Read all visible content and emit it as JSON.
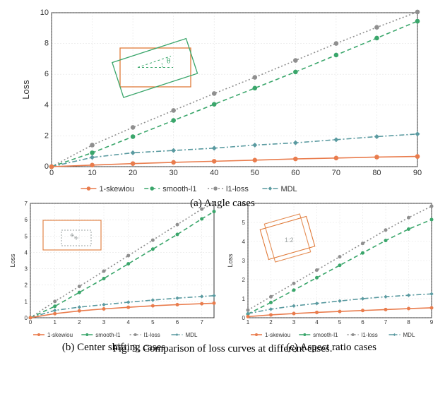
{
  "caption": "Fig. 3. Comparison of loss curves at different cases.",
  "subcaptions": {
    "a": "(a) Angle cases",
    "b": "(b) Center shifting cases",
    "c": "(c) Aspect ratio cases"
  },
  "legend_labels": {
    "skewiou": "1-skewiou",
    "smooth": "smooth-l1",
    "l1": "l1-loss",
    "mdl": "MDL"
  },
  "colors": {
    "skewiou": "#e97c4d",
    "smooth": "#3aa66b",
    "l1": "#8f8f8f",
    "mdl": "#5a9aa0",
    "axis": "#333333",
    "bg": "#ffffff",
    "inset_orange": "#e07b3a",
    "inset_green": "#3aa66b",
    "inset_gray": "#9aa0a0"
  },
  "chart_a": {
    "type": "line",
    "xlim": [
      0,
      90
    ],
    "ylim": [
      0,
      10
    ],
    "xtick_step": 10,
    "ytick_step": 2,
    "ylabel": "Loss",
    "x": [
      0,
      10,
      20,
      30,
      40,
      50,
      60,
      70,
      80,
      90
    ],
    "series": {
      "skewiou": [
        0.0,
        0.1,
        0.2,
        0.28,
        0.35,
        0.42,
        0.5,
        0.56,
        0.62,
        0.66
      ],
      "smooth": [
        0.0,
        0.9,
        1.95,
        3.0,
        4.05,
        5.1,
        6.15,
        7.25,
        8.35,
        9.45
      ],
      "l1": [
        0.0,
        1.4,
        2.55,
        3.65,
        4.75,
        5.8,
        6.9,
        8.0,
        9.05,
        10.05
      ],
      "mdl": [
        0.0,
        0.6,
        0.9,
        1.05,
        1.2,
        1.4,
        1.55,
        1.75,
        1.95,
        2.12
      ]
    },
    "inset": {
      "theta_label": "θ"
    }
  },
  "chart_b": {
    "type": "line",
    "xlim": [
      0,
      7.5
    ],
    "ylim": [
      0,
      7
    ],
    "xtick_step": 1,
    "ytick_step": 1,
    "ylabel": "Loss",
    "x": [
      0,
      1,
      2,
      3,
      4,
      5,
      6,
      7,
      7.5
    ],
    "series": {
      "skewiou": [
        0.0,
        0.25,
        0.42,
        0.54,
        0.64,
        0.73,
        0.8,
        0.86,
        0.89
      ],
      "smooth": [
        0.0,
        0.7,
        1.55,
        2.4,
        3.3,
        4.2,
        5.1,
        6.05,
        6.5
      ],
      "l1": [
        0.0,
        1.0,
        1.92,
        2.85,
        3.8,
        4.75,
        5.7,
        6.65,
        7.0
      ],
      "mdl": [
        0.0,
        0.45,
        0.65,
        0.8,
        0.95,
        1.08,
        1.2,
        1.3,
        1.35
      ]
    }
  },
  "chart_c": {
    "type": "line",
    "xlim": [
      1,
      9
    ],
    "ylim": [
      0,
      6
    ],
    "xtick_step": 1,
    "ytick_step": 1,
    "ylabel": "Loss",
    "x": [
      1,
      2,
      3,
      4,
      5,
      6,
      7,
      8,
      9
    ],
    "series": {
      "skewiou": [
        0.06,
        0.15,
        0.22,
        0.28,
        0.33,
        0.38,
        0.43,
        0.48,
        0.52
      ],
      "smooth": [
        0.2,
        0.8,
        1.45,
        2.1,
        2.75,
        3.4,
        4.05,
        4.65,
        5.15
      ],
      "l1": [
        0.4,
        1.1,
        1.8,
        2.5,
        3.2,
        3.9,
        4.6,
        5.25,
        5.85
      ],
      "mdl": [
        0.22,
        0.45,
        0.62,
        0.75,
        0.88,
        1.0,
        1.1,
        1.18,
        1.25
      ]
    },
    "inset": {
      "ratio_label": "1:2"
    }
  },
  "styling": {
    "line_width": 1.6,
    "marker_radius": 2.8,
    "marker_radius_sm": 2.0,
    "dash_smooth": "6 4",
    "dash_l1": "2 3",
    "dash_mdl": "7 3 2 3"
  }
}
